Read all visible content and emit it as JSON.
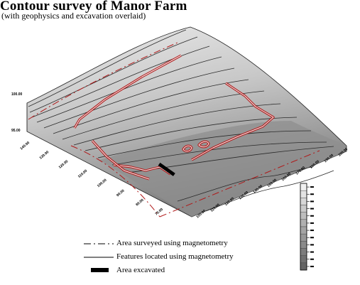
{
  "title": "Contour survey of Manor Farm",
  "subtitle": "(with geophysics and excavation overlaid)",
  "chart_data": {
    "type": "surface",
    "description_level": "contour",
    "z_axis": {
      "ticks": [
        "100.00",
        "95.00"
      ]
    },
    "left_axis": {
      "ticks": [
        "140.00",
        "130.00",
        "120.00",
        "110.00",
        "100.00",
        "90.00",
        "80.00",
        "70.00"
      ]
    },
    "right_axis": {
      "ticks": [
        "100.00",
        "110.00",
        "120.00",
        "130.00",
        "140.00",
        "150.00",
        "160.00",
        "170.00",
        "180.00",
        "190.00",
        "200.00"
      ]
    },
    "scale_bar": {
      "levels": 12,
      "tick_labels": [
        "",
        "",
        "",
        "",
        "",
        "",
        "",
        "",
        "",
        "",
        "",
        ""
      ]
    },
    "legend": [
      {
        "label": "Area surveyed using magnetometry",
        "style": "dash-dot"
      },
      {
        "label": "Features located using magnetometry",
        "style": "solid"
      },
      {
        "label": "Area excavated",
        "style": "thick-bar"
      }
    ]
  },
  "colors": {
    "feature_red": "#b01818",
    "survey_dash": "#b01818",
    "surface_dark": "#7a7a7a",
    "surface_light": "#e4e4e4"
  }
}
